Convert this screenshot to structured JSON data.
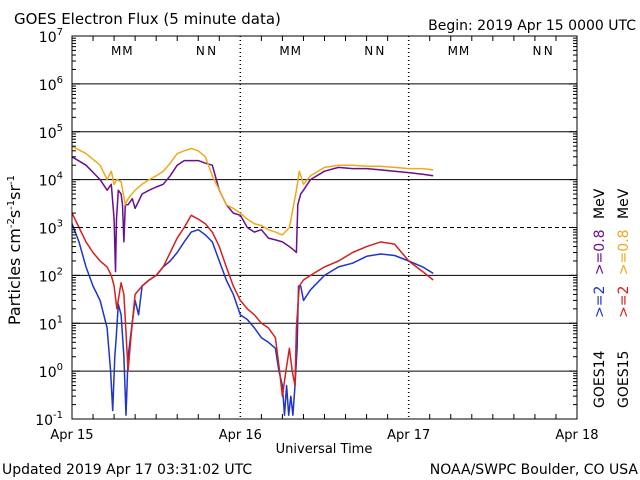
{
  "chart_data": {
    "type": "line",
    "title": "GOES Electron Flux (5 minute data)",
    "begin": "Begin: 2019 Apr 15 0000 UTC",
    "xlabel": "Universal Time",
    "ylabel_main": "Particles cm",
    "ylabel_sup1": "-2",
    "ylabel_s": "s",
    "ylabel_sup2": "-1",
    "ylabel_sr": "sr",
    "ylabel_sup3": "-1",
    "x_unit": "hours since 2019 Apr 15 0000 UTC",
    "xlim": [
      0,
      72
    ],
    "ylim": [
      0.1,
      10000000
    ],
    "y_scale": "log",
    "y_ticks": [
      {
        "base": "10",
        "exp": "7",
        "value": 10000000
      },
      {
        "base": "10",
        "exp": "6",
        "value": 1000000
      },
      {
        "base": "10",
        "exp": "5",
        "value": 100000
      },
      {
        "base": "10",
        "exp": "4",
        "value": 10000
      },
      {
        "base": "10",
        "exp": "3",
        "value": 1000
      },
      {
        "base": "10",
        "exp": "2",
        "value": 100
      },
      {
        "base": "10",
        "exp": "1",
        "value": 10
      },
      {
        "base": "10",
        "exp": "0",
        "value": 1
      },
      {
        "base": "10",
        "exp": "-1",
        "value": 0.1
      }
    ],
    "x_ticks": [
      {
        "label": "Apr 15",
        "value": 0
      },
      {
        "label": "Apr 16",
        "value": 24
      },
      {
        "label": "Apr 17",
        "value": 48
      },
      {
        "label": "Apr 18",
        "value": 72
      }
    ],
    "dashed_gridline_value": 1000,
    "markers": [
      {
        "label": "M",
        "value": 6.3,
        "color": "#1f34c8"
      },
      {
        "label": "M",
        "value": 7.9,
        "color": "#d42020"
      },
      {
        "label": "N",
        "value": 18.3,
        "color": "#1f34c8"
      },
      {
        "label": "N",
        "value": 19.9,
        "color": "#d42020"
      },
      {
        "label": "M",
        "value": 30.3,
        "color": "#1f34c8"
      },
      {
        "label": "M",
        "value": 31.9,
        "color": "#d42020"
      },
      {
        "label": "N",
        "value": 42.3,
        "color": "#1f34c8"
      },
      {
        "label": "N",
        "value": 43.9,
        "color": "#d42020"
      },
      {
        "label": "M",
        "value": 54.3,
        "color": "#1f34c8"
      },
      {
        "label": "M",
        "value": 55.9,
        "color": "#d42020"
      },
      {
        "label": "N",
        "value": 66.3,
        "color": "#1f34c8"
      },
      {
        "label": "N",
        "value": 67.9,
        "color": "#d42020"
      }
    ],
    "legend": {
      "placement": "right",
      "sat1": "GOES14",
      "sat2": "GOES15",
      "entries": [
        {
          "label": ">=2",
          "color": "#1f34c8"
        },
        {
          "label": ">=0.8",
          "color": "#6a0f8e"
        },
        {
          "label": "MeV",
          "color": "#000000"
        },
        {
          "label": ">=2",
          "color": "#d42020"
        },
        {
          "label": ">=0.8",
          "color": "#f0a81c"
        },
        {
          "label": "MeV",
          "color": "#000000"
        }
      ]
    },
    "series": [
      {
        "name": "GOES14 >=0.8 MeV",
        "color": "#6a0f8e",
        "x": [
          0,
          2,
          4,
          5,
          5.6,
          6,
          6.2,
          6.35,
          6.6,
          7,
          7.2,
          7.4,
          7.6,
          8,
          8.6,
          9,
          10,
          11,
          12,
          13,
          14,
          15,
          16,
          17,
          18,
          19,
          20,
          21,
          22,
          23,
          24,
          25,
          26,
          27,
          28,
          29,
          30,
          31,
          31.5,
          32,
          32.2,
          32.6,
          33,
          34,
          36,
          38,
          40,
          42,
          44,
          46,
          48,
          50,
          51.5
        ],
        "y": [
          30000,
          20000,
          10000,
          6000,
          8000,
          1500,
          120,
          1500,
          6000,
          5000,
          3000,
          500,
          3000,
          3000,
          4000,
          2500,
          5000,
          6000,
          7000,
          8000,
          12000,
          20000,
          25000,
          25000,
          25000,
          22000,
          20000,
          6000,
          3000,
          2000,
          1800,
          1000,
          800,
          900,
          600,
          550,
          500,
          400,
          350,
          300,
          3000,
          5000,
          6000,
          10000,
          15000,
          18000,
          17000,
          17000,
          16000,
          15000,
          14000,
          13000,
          12000
        ]
      },
      {
        "name": "GOES15 >=0.8 MeV",
        "color": "#f0a81c",
        "x": [
          0,
          2,
          4,
          5,
          5.6,
          6,
          6.4,
          7,
          7.6,
          8,
          9,
          10,
          11,
          12,
          13,
          14,
          15,
          16,
          17,
          18,
          19,
          20,
          21,
          22,
          23,
          24,
          25,
          26,
          27,
          28,
          29,
          30,
          31,
          32,
          32.4,
          33,
          34,
          36,
          38,
          40,
          42,
          44,
          46,
          48,
          50,
          51.5
        ],
        "y": [
          50000,
          35000,
          20000,
          10000,
          15000,
          8000,
          10000,
          9000,
          3000,
          4000,
          6000,
          8000,
          10000,
          12000,
          15000,
          22000,
          35000,
          40000,
          45000,
          40000,
          30000,
          12000,
          6000,
          3000,
          2500,
          2000,
          1500,
          1200,
          1100,
          900,
          800,
          700,
          1000,
          6000,
          15000,
          8000,
          12000,
          18000,
          20000,
          20000,
          19000,
          19000,
          18000,
          17000,
          17000,
          16000
        ]
      },
      {
        "name": "GOES14 >=2 MeV",
        "color": "#1f34c8",
        "x": [
          0,
          1,
          2,
          3,
          4,
          5,
          5.5,
          5.8,
          6.1,
          6.3,
          6.6,
          7,
          7.4,
          7.7,
          8,
          8.5,
          9,
          9.5,
          10,
          11,
          12,
          13,
          14,
          15,
          16,
          17,
          18,
          19,
          20,
          21,
          22,
          23,
          24,
          25,
          26,
          27,
          28,
          29,
          29.5,
          30,
          30.3,
          30.6,
          30.9,
          31.2,
          31.5,
          31.8,
          32.1,
          32.3,
          32.6,
          33,
          34,
          36,
          38,
          40,
          42,
          44,
          46,
          48,
          50,
          51.5
        ],
        "y": [
          1200,
          500,
          150,
          60,
          30,
          8,
          1,
          0.15,
          2,
          5,
          25,
          15,
          2,
          0.12,
          2,
          8,
          30,
          15,
          60,
          80,
          100,
          150,
          200,
          300,
          500,
          800,
          900,
          700,
          500,
          200,
          80,
          40,
          15,
          12,
          8,
          5,
          4,
          3,
          1,
          0.5,
          0.12,
          0.5,
          0.12,
          0.3,
          0.12,
          0.5,
          3,
          60,
          60,
          30,
          50,
          100,
          150,
          180,
          250,
          280,
          260,
          200,
          150,
          110
        ]
      },
      {
        "name": "GOES15 >=2 MeV",
        "color": "#d42020",
        "x": [
          0,
          1,
          2,
          3,
          4,
          5,
          5.6,
          6,
          6.4,
          7,
          7.4,
          8,
          8.4,
          9,
          10,
          11,
          12,
          13,
          14,
          15,
          16,
          17,
          18,
          19,
          20,
          21,
          22,
          23,
          24,
          25,
          26,
          27,
          28,
          29,
          29.6,
          30,
          30.5,
          31,
          31.4,
          31.8,
          32,
          32.4,
          33,
          34,
          36,
          38,
          40,
          42,
          44,
          46,
          48,
          50,
          51.5
        ],
        "y": [
          2000,
          1000,
          500,
          300,
          200,
          150,
          100,
          60,
          20,
          70,
          40,
          1,
          5,
          40,
          60,
          80,
          100,
          150,
          300,
          600,
          1000,
          1800,
          1500,
          1200,
          800,
          400,
          150,
          60,
          30,
          20,
          15,
          10,
          8,
          5,
          1,
          0.3,
          1,
          3,
          1,
          0.5,
          8,
          60,
          80,
          100,
          150,
          200,
          300,
          400,
          500,
          450,
          200,
          120,
          80
        ]
      }
    ],
    "footer_left": "Updated 2019 Apr 17 03:31:02 UTC",
    "footer_right": "NOAA/SWPC Boulder, CO USA"
  }
}
